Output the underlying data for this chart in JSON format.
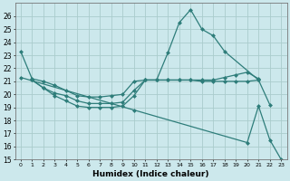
{
  "xlabel": "Humidex (Indice chaleur)",
  "background_color": "#cce8ec",
  "grid_color": "#aacccc",
  "line_color": "#2e7d7a",
  "ylim": [
    15,
    27
  ],
  "xlim": [
    -0.5,
    23.5
  ],
  "yticks": [
    15,
    16,
    17,
    18,
    19,
    20,
    21,
    22,
    23,
    24,
    25,
    26
  ],
  "xticks": [
    0,
    1,
    2,
    3,
    4,
    5,
    6,
    7,
    8,
    9,
    10,
    11,
    12,
    13,
    14,
    15,
    16,
    17,
    18,
    19,
    20,
    21,
    22,
    23
  ],
  "line1_x": [
    0,
    1,
    2,
    3,
    4,
    5,
    6,
    7,
    8,
    9,
    10,
    11,
    12,
    13,
    14,
    15,
    16,
    17,
    18,
    21
  ],
  "line1_y": [
    23.3,
    21.2,
    21.0,
    20.7,
    20.3,
    19.9,
    19.8,
    19.8,
    19.9,
    20.0,
    21.0,
    21.1,
    21.1,
    23.2,
    25.5,
    26.5,
    25.0,
    24.5,
    23.3,
    21.1
  ],
  "line2_x": [
    1,
    2,
    3,
    4,
    5,
    6,
    7,
    8,
    9,
    10,
    11,
    12,
    13,
    14,
    15,
    16,
    17,
    18,
    19,
    20,
    21
  ],
  "line2_y": [
    21.1,
    20.5,
    20.1,
    19.9,
    19.5,
    19.3,
    19.3,
    19.3,
    19.4,
    20.3,
    21.1,
    21.1,
    21.1,
    21.1,
    21.1,
    21.1,
    21.1,
    21.3,
    21.5,
    21.7,
    21.2
  ],
  "line3_x": [
    1,
    2,
    3,
    4,
    5,
    6,
    7,
    8,
    9,
    10,
    11,
    12,
    13,
    14,
    15,
    16,
    17,
    18,
    19,
    20,
    21,
    22
  ],
  "line3_y": [
    21.1,
    20.5,
    19.9,
    19.5,
    19.1,
    19.0,
    19.0,
    19.0,
    19.1,
    19.9,
    21.1,
    21.1,
    21.1,
    21.1,
    21.1,
    21.0,
    21.0,
    21.0,
    21.0,
    21.0,
    21.1,
    19.2
  ],
  "line4_x": [
    0,
    10,
    20,
    21,
    22,
    23
  ],
  "line4_y": [
    21.3,
    18.8,
    16.3,
    19.1,
    16.5,
    15.0
  ]
}
